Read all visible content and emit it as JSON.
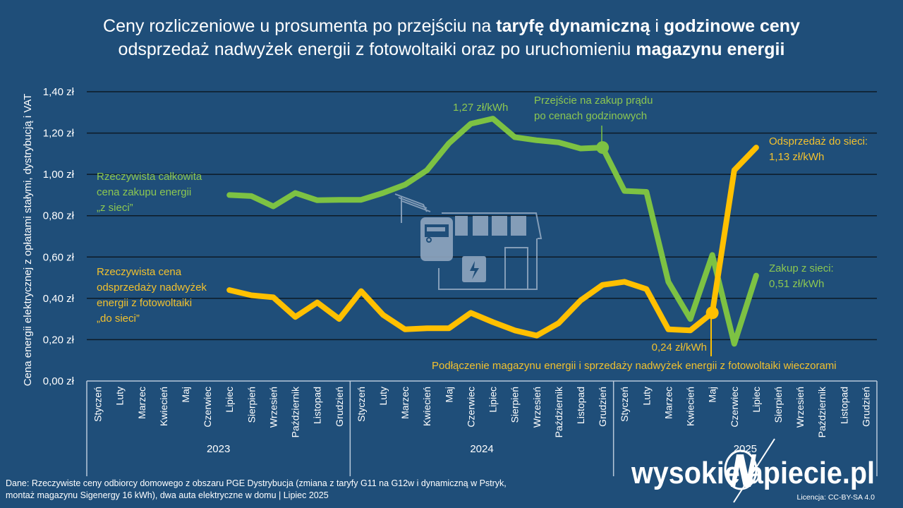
{
  "title": {
    "line1_a": "Ceny rozliczeniowe u prosumenta po przejściu na ",
    "line1_b": "taryfę dynamiczną",
    "line1_c": " i ",
    "line1_d": "godzinowe ceny",
    "line2_a": "odsprzedaż nadwyżek energii z fotowoltaiki oraz po uruchomieniu ",
    "line2_b": "magazynu energii"
  },
  "annotations": {
    "green_label": [
      "Rzeczywista całkowita",
      "cena zakupu energii",
      "„z sieci”"
    ],
    "yellow_label": [
      "Rzeczywista cena",
      "odsprzedaży nadwyżek",
      "energii z fotowoltaiki",
      "„do sieci”"
    ],
    "peak": "1,27 zł/kWh",
    "switch": [
      "Przejście na zakup prądu",
      "po cenach godzinowych"
    ],
    "sell_end": [
      "Odsprzedaż do sieci:",
      "1,13 zł/kWh"
    ],
    "buy_end": [
      "Zakup z sieci:",
      "0,51 zł/kWh"
    ],
    "low": "0,24 zł/kWh",
    "storage": "Podłączenie magazynu energii i sprzedaży nadwyżek energii z fotowoltaiki wieczorami"
  },
  "footer": {
    "source_line1": "Dane: Rzeczywiste ceny odbiorcy domowego z obszaru PGE Dystrybucja (zmiana z taryfy G11 na G12w i dynamiczną w Pstryk,",
    "source_line2": "montaż magazynu Sigenergy 16 kWh), dwa auta elektryczne w domu  |  Lipiec 2025",
    "logo": "wysokienapiecie.pl",
    "license": "Licencja: CC-BY-SA 4.0"
  },
  "colors": {
    "background": "#1f4e79",
    "buy_series": "#7dc243",
    "sell_series": "#ffc000",
    "gridline": "#0d1a26"
  },
  "chart_data": {
    "type": "line",
    "title": "Ceny rozliczeniowe u prosumenta po przejściu na taryfę dynamiczną i godzinowe ceny odsprzedaż nadwyżek energii z fotowoltaiki oraz po uruchomieniu magazynu energii",
    "ylabel": "Cena energii elektrycznej z opłatami stałymi, dystrybucją i VAT",
    "xlabel": "",
    "ylim": [
      0,
      1.4
    ],
    "yticks": [
      "0,00 zł",
      "0,20 zł",
      "0,40 zł",
      "0,60 zł",
      "0,80 zł",
      "1,00 zł",
      "1,20 zł",
      "1,40 zł"
    ],
    "ytick_values": [
      0,
      0.2,
      0.4,
      0.6,
      0.8,
      1.0,
      1.2,
      1.4
    ],
    "grid": true,
    "months": [
      "Styczeń",
      "Luty",
      "Marzec",
      "Kwiecień",
      "Maj",
      "Czerwiec",
      "Lipiec",
      "Sierpień",
      "Wrzesień",
      "Październik",
      "Listopad",
      "Grudzień"
    ],
    "years": [
      "2023",
      "2024",
      "2025"
    ],
    "series": [
      {
        "name": "Rzeczywista całkowita cena zakupu energii „z sieci”",
        "color": "#7dc243",
        "start": "Lipiec 2023",
        "values": [
          0.9,
          0.895,
          0.845,
          0.91,
          0.875,
          0.877,
          0.877,
          0.91,
          0.95,
          1.02,
          1.15,
          1.245,
          1.27,
          1.18,
          1.165,
          1.155,
          1.125,
          1.13,
          0.92,
          0.915,
          0.48,
          0.3,
          0.61,
          0.18,
          0.51
        ]
      },
      {
        "name": "Rzeczywista cena odsprzedaży nadwyżek energii z fotowoltaiki „do sieci”",
        "color": "#ffc000",
        "start": "Lipiec 2023",
        "values": [
          0.44,
          0.415,
          0.405,
          0.31,
          0.38,
          0.3,
          0.435,
          0.32,
          0.25,
          0.255,
          0.255,
          0.33,
          0.285,
          0.245,
          0.22,
          0.28,
          0.39,
          0.465,
          0.48,
          0.445,
          0.25,
          0.245,
          0.33,
          1.02,
          1.13
        ]
      }
    ],
    "markers": [
      {
        "series": 0,
        "month": "Grudzień 2024",
        "value": 1.13
      },
      {
        "series": 1,
        "month": "Maj 2025",
        "value": 0.33
      }
    ]
  }
}
